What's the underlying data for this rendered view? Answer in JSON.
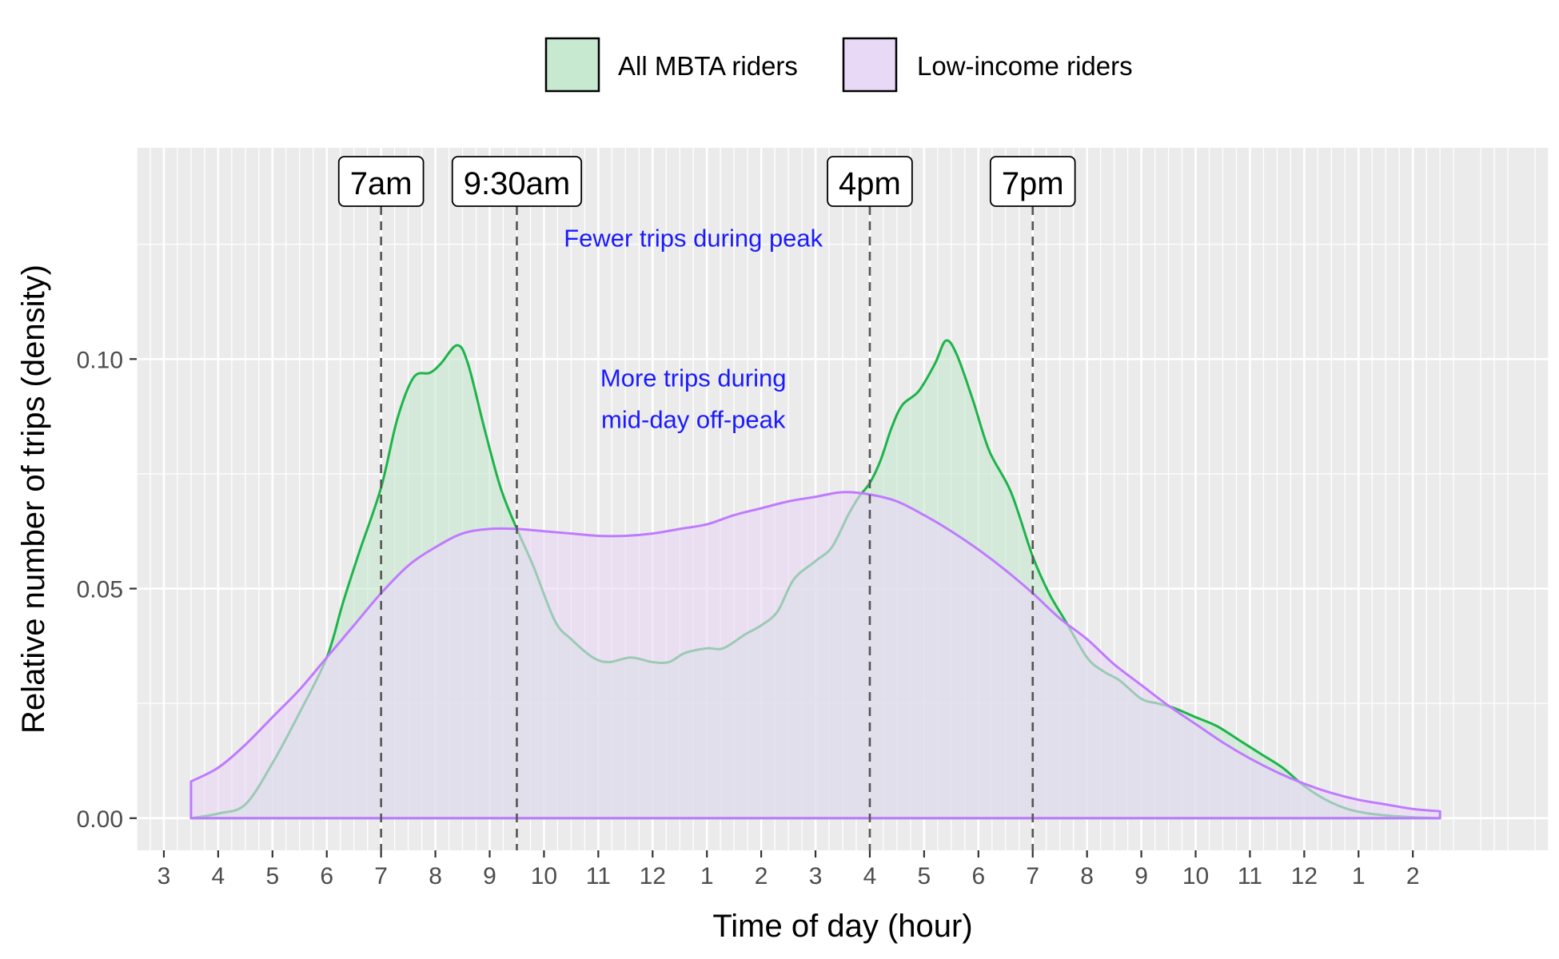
{
  "chart_data": {
    "type": "area",
    "title": "",
    "xlabel": "Time of day (hour)",
    "ylabel": "Relative number of trips (density)",
    "xlim": [
      2.5,
      28.5
    ],
    "ylim": [
      -0.007,
      0.146
    ],
    "grid": true,
    "legend_position": "top",
    "x_ticks": [
      {
        "value": 3,
        "label": "3"
      },
      {
        "value": 4,
        "label": "4"
      },
      {
        "value": 5,
        "label": "5"
      },
      {
        "value": 6,
        "label": "6"
      },
      {
        "value": 7,
        "label": "7"
      },
      {
        "value": 8,
        "label": "8"
      },
      {
        "value": 9,
        "label": "9"
      },
      {
        "value": 10,
        "label": "10"
      },
      {
        "value": 11,
        "label": "11"
      },
      {
        "value": 12,
        "label": "12"
      },
      {
        "value": 13,
        "label": "1"
      },
      {
        "value": 14,
        "label": "2"
      },
      {
        "value": 15,
        "label": "3"
      },
      {
        "value": 16,
        "label": "4"
      },
      {
        "value": 17,
        "label": "5"
      },
      {
        "value": 18,
        "label": "6"
      },
      {
        "value": 19,
        "label": "7"
      },
      {
        "value": 20,
        "label": "8"
      },
      {
        "value": 21,
        "label": "9"
      },
      {
        "value": 22,
        "label": "10"
      },
      {
        "value": 23,
        "label": "11"
      },
      {
        "value": 24,
        "label": "12"
      },
      {
        "value": 25,
        "label": "1"
      },
      {
        "value": 26,
        "label": "2"
      }
    ],
    "y_ticks": [
      {
        "value": 0.0,
        "label": "0.00"
      },
      {
        "value": 0.05,
        "label": "0.05"
      },
      {
        "value": 0.1,
        "label": "0.10"
      }
    ],
    "series": [
      {
        "name": "All MBTA riders",
        "fill": "#c6e9cf",
        "stroke": "#1db44a",
        "points": [
          [
            3.5,
            0.0
          ],
          [
            4.0,
            0.001
          ],
          [
            4.5,
            0.003
          ],
          [
            5.0,
            0.012
          ],
          [
            5.5,
            0.023
          ],
          [
            6.0,
            0.035
          ],
          [
            6.3,
            0.047
          ],
          [
            6.6,
            0.058
          ],
          [
            7.0,
            0.072
          ],
          [
            7.3,
            0.087
          ],
          [
            7.6,
            0.096
          ],
          [
            7.9,
            0.097
          ],
          [
            8.1,
            0.099
          ],
          [
            8.4,
            0.103
          ],
          [
            8.6,
            0.099
          ],
          [
            8.9,
            0.085
          ],
          [
            9.2,
            0.072
          ],
          [
            9.5,
            0.063
          ],
          [
            9.8,
            0.055
          ],
          [
            10.2,
            0.043
          ],
          [
            10.5,
            0.039
          ],
          [
            10.9,
            0.035
          ],
          [
            11.2,
            0.034
          ],
          [
            11.6,
            0.035
          ],
          [
            12.0,
            0.034
          ],
          [
            12.3,
            0.034
          ],
          [
            12.6,
            0.036
          ],
          [
            13.0,
            0.037
          ],
          [
            13.3,
            0.037
          ],
          [
            13.7,
            0.04
          ],
          [
            14.0,
            0.042
          ],
          [
            14.3,
            0.045
          ],
          [
            14.6,
            0.052
          ],
          [
            15.0,
            0.056
          ],
          [
            15.3,
            0.059
          ],
          [
            15.6,
            0.066
          ],
          [
            15.8,
            0.07
          ],
          [
            16.0,
            0.073
          ],
          [
            16.2,
            0.078
          ],
          [
            16.4,
            0.085
          ],
          [
            16.6,
            0.09
          ],
          [
            16.9,
            0.093
          ],
          [
            17.2,
            0.099
          ],
          [
            17.4,
            0.104
          ],
          [
            17.6,
            0.101
          ],
          [
            17.9,
            0.091
          ],
          [
            18.2,
            0.08
          ],
          [
            18.6,
            0.071
          ],
          [
            19.0,
            0.057
          ],
          [
            19.3,
            0.049
          ],
          [
            19.6,
            0.043
          ],
          [
            20.0,
            0.035
          ],
          [
            20.3,
            0.032
          ],
          [
            20.6,
            0.03
          ],
          [
            21.0,
            0.026
          ],
          [
            21.3,
            0.025
          ],
          [
            21.6,
            0.024
          ],
          [
            22.0,
            0.022
          ],
          [
            22.4,
            0.02
          ],
          [
            22.8,
            0.017
          ],
          [
            23.2,
            0.014
          ],
          [
            23.6,
            0.011
          ],
          [
            24.0,
            0.007
          ],
          [
            24.4,
            0.004
          ],
          [
            24.8,
            0.002
          ],
          [
            25.2,
            0.001
          ],
          [
            25.6,
            0.0005
          ],
          [
            26.0,
            0.0002
          ],
          [
            26.5,
            0.0
          ]
        ]
      },
      {
        "name": "Low-income riders",
        "fill": "#e8d9f6",
        "stroke": "#c07aff",
        "points": [
          [
            3.5,
            0.008
          ],
          [
            4.0,
            0.011
          ],
          [
            4.5,
            0.016
          ],
          [
            5.0,
            0.022
          ],
          [
            5.5,
            0.028
          ],
          [
            6.0,
            0.035
          ],
          [
            6.5,
            0.042
          ],
          [
            7.0,
            0.049
          ],
          [
            7.5,
            0.055
          ],
          [
            8.0,
            0.059
          ],
          [
            8.5,
            0.062
          ],
          [
            9.0,
            0.063
          ],
          [
            9.5,
            0.063
          ],
          [
            10.0,
            0.0625
          ],
          [
            10.5,
            0.062
          ],
          [
            11.0,
            0.0615
          ],
          [
            11.5,
            0.0615
          ],
          [
            12.0,
            0.062
          ],
          [
            12.5,
            0.063
          ],
          [
            13.0,
            0.064
          ],
          [
            13.5,
            0.066
          ],
          [
            14.0,
            0.0675
          ],
          [
            14.5,
            0.069
          ],
          [
            15.0,
            0.07
          ],
          [
            15.5,
            0.071
          ],
          [
            16.0,
            0.0705
          ],
          [
            16.5,
            0.069
          ],
          [
            17.0,
            0.066
          ],
          [
            17.5,
            0.0625
          ],
          [
            18.0,
            0.0585
          ],
          [
            18.5,
            0.054
          ],
          [
            19.0,
            0.049
          ],
          [
            19.5,
            0.0435
          ],
          [
            20.0,
            0.039
          ],
          [
            20.5,
            0.0335
          ],
          [
            21.0,
            0.029
          ],
          [
            21.5,
            0.0245
          ],
          [
            22.0,
            0.0205
          ],
          [
            22.5,
            0.0165
          ],
          [
            23.0,
            0.013
          ],
          [
            23.5,
            0.01
          ],
          [
            24.0,
            0.0075
          ],
          [
            24.5,
            0.0055
          ],
          [
            25.0,
            0.004
          ],
          [
            25.5,
            0.003
          ],
          [
            26.0,
            0.002
          ],
          [
            26.5,
            0.0015
          ]
        ]
      }
    ],
    "vertical_markers": [
      {
        "x": 7.0,
        "label": "7am"
      },
      {
        "x": 9.5,
        "label": "9:30am"
      },
      {
        "x": 16.0,
        "label": "4pm"
      },
      {
        "x": 19.0,
        "label": "7pm"
      }
    ],
    "annotations": [
      {
        "lines": [
          "Fewer trips during peak"
        ],
        "x": 12.75,
        "y": 0.1245
      },
      {
        "lines": [
          "More trips during",
          "mid-day off-peak"
        ],
        "x": 12.75,
        "y": 0.094
      }
    ]
  }
}
